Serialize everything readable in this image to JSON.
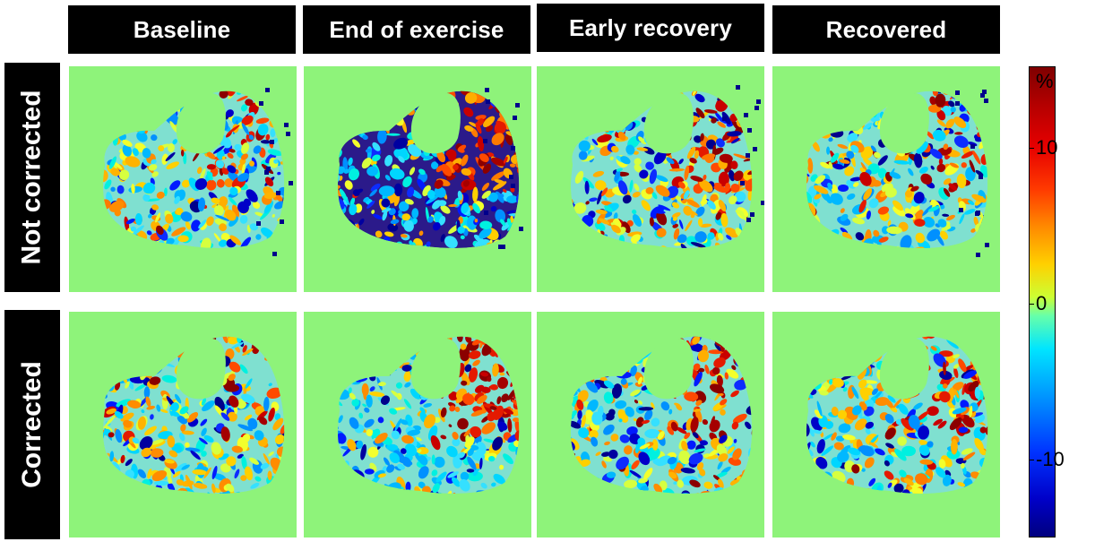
{
  "figure": {
    "column_headers": [
      "Baseline",
      "End of exercise",
      "Early recovery",
      "Recovered"
    ],
    "row_headers": [
      "Not corrected",
      "Corrected"
    ],
    "colorbar": {
      "unit_label": "%",
      "tick_labels": [
        "10",
        "0",
        "-10"
      ]
    },
    "colors": {
      "background_tissue": "#8ef37a",
      "header_bg": "#000000",
      "header_text": "#ffffff"
    }
  }
}
